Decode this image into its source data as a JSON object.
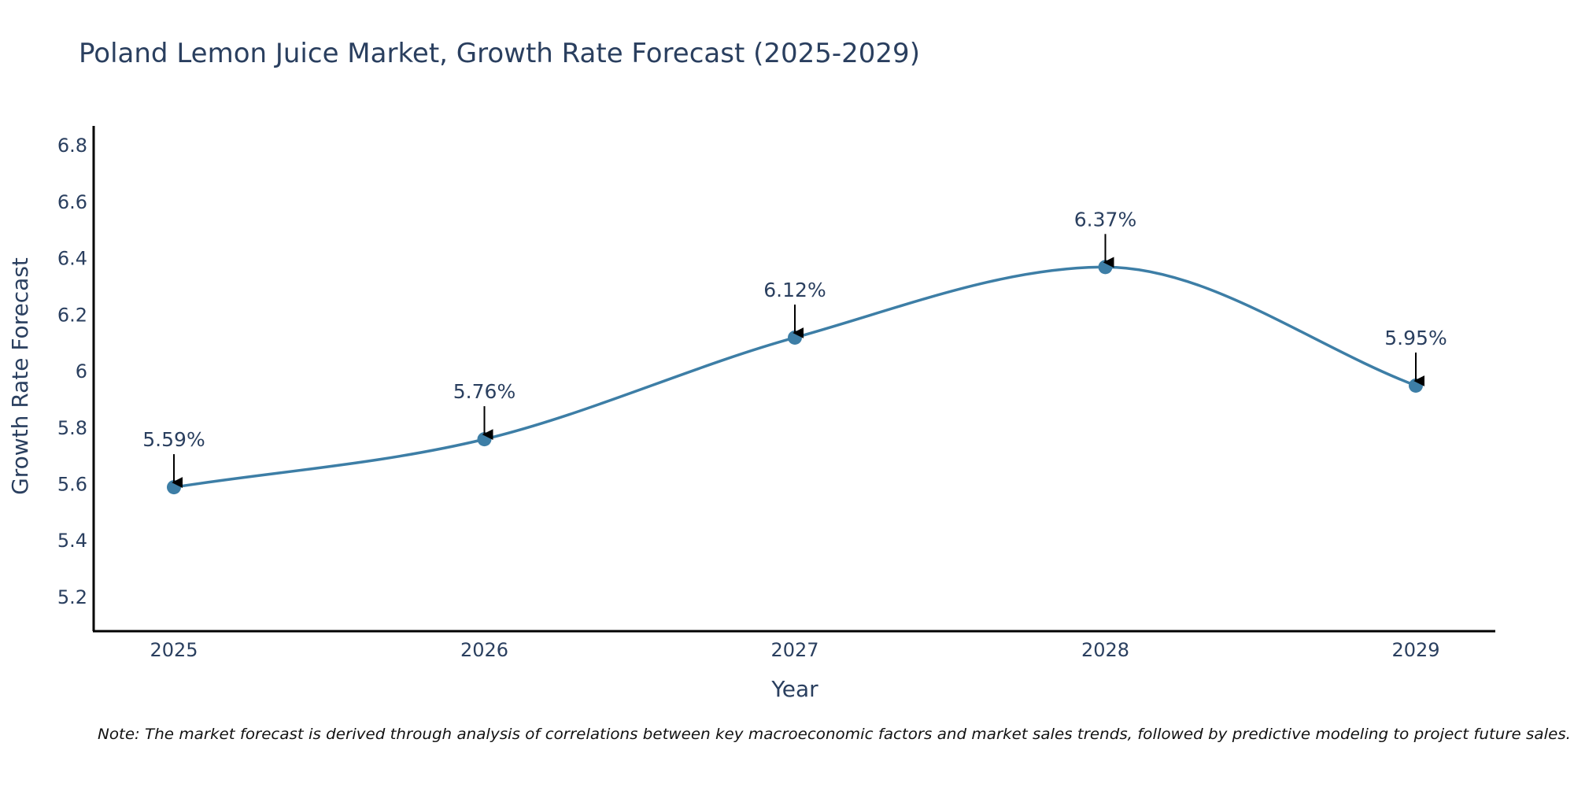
{
  "chart_data": {
    "type": "line",
    "title": "Poland Lemon Juice Market, Growth Rate Forecast (2025-2029)",
    "xlabel": "Year",
    "ylabel": "Growth Rate Forecast",
    "categories": [
      "2025",
      "2026",
      "2027",
      "2028",
      "2029"
    ],
    "values": [
      5.59,
      5.76,
      6.12,
      6.37,
      5.95
    ],
    "data_labels": [
      "5.59%",
      "5.76%",
      "6.12%",
      "6.37%",
      "5.95%"
    ],
    "yticks": [
      5.2,
      5.4,
      5.6,
      5.8,
      6,
      6.2,
      6.4,
      6.6,
      6.8
    ],
    "ytick_labels": [
      "5.2",
      "5.4",
      "5.6",
      "5.8",
      "6",
      "6.2",
      "6.4",
      "6.6",
      "6.8"
    ],
    "ylim": [
      5.08,
      6.87
    ],
    "line_color": "#3d7ea6",
    "marker_color": "#3d7ea6",
    "arrow_color": "#000000",
    "grid": false,
    "note": "Note: The market forecast is derived through analysis of correlations between key macroeconomic factors and market sales trends, followed by predictive modeling to project future sales."
  }
}
